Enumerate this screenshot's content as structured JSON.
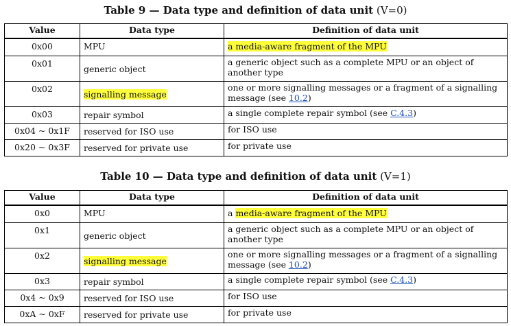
{
  "table9": {
    "caption_bold": "Table 9 — Data type and definition of data unit",
    "caption_rest": " (V=0)",
    "headers": [
      "Value",
      "Data type",
      "Definition of data unit"
    ],
    "rows": [
      {
        "value": "0x00",
        "type": "MPU",
        "def": "a media-aware fragment of the MPU"
      },
      {
        "value": "0x01",
        "type": "generic object",
        "def": "a generic object such as a complete MPU or an object of another type"
      },
      {
        "value": "0x02",
        "type": "signalling message",
        "def": "one or more signalling messages or a fragment of a signalling message (see ",
        "def_link": "10.2",
        "def_end": ")"
      },
      {
        "value": "0x03",
        "type": "repair symbol",
        "def": "a single complete repair symbol (see ",
        "def_link": "C.4.3",
        "def_end": ")"
      },
      {
        "value": "0x04 ~ 0x1F",
        "type": "reserved for ISO use",
        "def": "for ISO use"
      },
      {
        "value": "0x20 ~ 0x3F",
        "type": "reserved for private use",
        "def": "for private use"
      }
    ]
  },
  "table10": {
    "caption_bold": "Table 10 — Data type and definition of data unit",
    "caption_rest": " (V=1)",
    "headers": [
      "Value",
      "Data type",
      "Definition of data unit"
    ],
    "rows": [
      {
        "value": "0x0",
        "type": "MPU",
        "def_prefix": "a ",
        "def": "media-aware fragment of the MPU"
      },
      {
        "value": "0x1",
        "type": "generic object",
        "def": "a generic object such as a complete MPU or an object of another type"
      },
      {
        "value": "0x2",
        "type": "signalling message",
        "def": "one or more signalling messages or a fragment of a signalling message (see ",
        "def_link": "10.2",
        "def_end": ")"
      },
      {
        "value": "0x3",
        "type": "repair symbol",
        "def": "a single complete repair symbol (see ",
        "def_link": "C.4.3",
        "def_end": ")"
      },
      {
        "value": "0x4 ~ 0x9",
        "type": "reserved for ISO use",
        "def": "for ISO use"
      },
      {
        "value": "0xA ~ 0xF",
        "type": "reserved for private use",
        "def": "for private use"
      }
    ]
  },
  "highlight_color": "#ffff3a",
  "link_color": "#1a4fbf"
}
